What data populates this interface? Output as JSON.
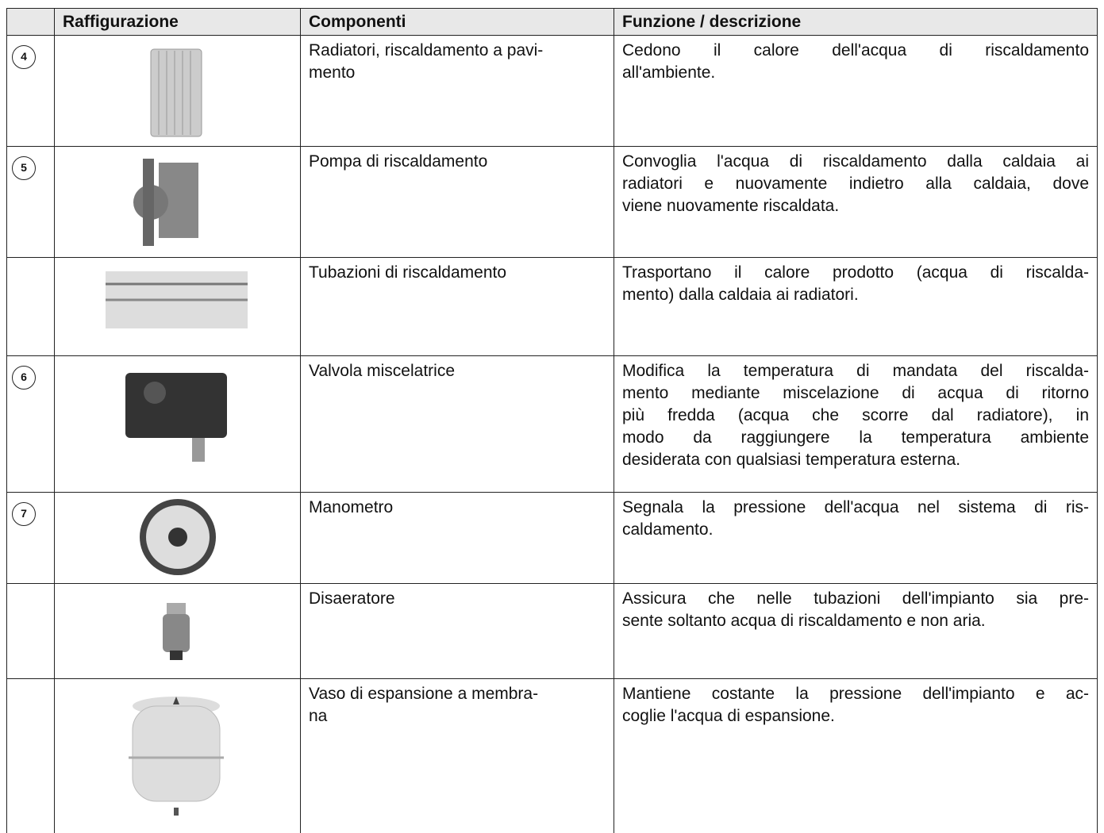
{
  "table": {
    "header": [
      "Raffigurazione",
      "Componenti",
      "Funzione / descrizione"
    ],
    "rows": [
      {
        "number": "4",
        "component": [
          "Radiatori, riscaldamento a pavi-",
          "mento"
        ],
        "description": [
          "Cedono il calore dell'acqua di riscaldamento",
          "all'ambiente."
        ]
      },
      {
        "number": "5",
        "component": [
          "Pompa di riscaldamento"
        ],
        "description": [
          "Convoglia l'acqua di riscaldamento dalla caldaia ai",
          "radiatori e nuovamente indietro alla caldaia, dove",
          "viene nuovamente riscaldata."
        ]
      },
      {
        "component": [
          "Tubazioni di riscaldamento"
        ],
        "description": [
          "Trasportano il calore prodotto (acqua di riscalda-",
          "mento) dalla caldaia ai radiatori."
        ]
      },
      {
        "number": "6",
        "component": [
          "Valvola miscelatrice"
        ],
        "description": [
          "Modifica la temperatura di mandata del riscalda-",
          "mento mediante miscelazione di acqua di ritorno",
          "più fredda (acqua che scorre dal radiatore), in",
          "modo da raggiungere la temperatura ambiente",
          "desiderata con qualsiasi temperatura esterna."
        ]
      },
      {
        "number": "7",
        "component": [
          "Manometro"
        ],
        "description": [
          "Segnala la pressione dell'acqua nel sistema di ris-",
          "caldamento."
        ]
      },
      {
        "component": [
          "Disaeratore"
        ],
        "description": [
          "Assicura che nelle tubazioni dell'impianto sia pre-",
          "sente soltanto acqua di riscaldamento e non aria."
        ]
      },
      {
        "component": [
          "Vaso di espansione a membra-",
          "na"
        ],
        "description": [
          "Mantiene costante la pressione dell'impianto e ac-",
          "coglie l'acqua di espansione."
        ]
      }
    ]
  }
}
